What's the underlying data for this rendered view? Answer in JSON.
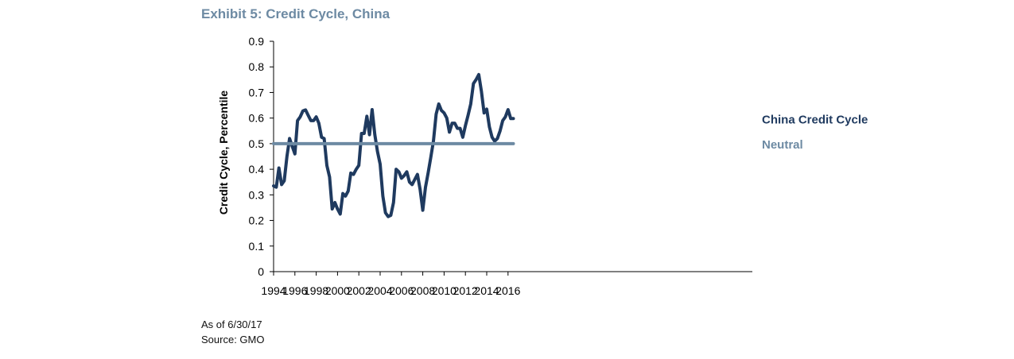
{
  "title": "Exhibit 5: Credit Cycle, China",
  "notes": {
    "as_of": "As of 6/30/17",
    "source": "Source: GMO"
  },
  "colors": {
    "series": "#1f3a5f",
    "neutral": "#6d8aa3",
    "title": "#6d8aa3",
    "axis": "#000000"
  },
  "chart_data": {
    "type": "line",
    "title": "Exhibit 5: Credit Cycle, China",
    "xlabel": "",
    "ylabel": "Credit Cycle, Percentile",
    "xlim": [
      1994,
      2016.5
    ],
    "ylim": [
      0,
      0.9
    ],
    "x_ticks": [
      "1994",
      "1996",
      "1998",
      "2000",
      "2002",
      "2004",
      "2006",
      "2008",
      "2010",
      "2012",
      "2014",
      "2016"
    ],
    "y_ticks": [
      "0",
      "0.1",
      "0.2",
      "0.3",
      "0.4",
      "0.5",
      "0.6",
      "0.7",
      "0.8",
      "0.9"
    ],
    "grid": false,
    "legend": "inline-right",
    "series": [
      {
        "name": "China Credit Cycle",
        "x": [
          1994.0,
          1994.25,
          1994.5,
          1994.75,
          1995.0,
          1995.25,
          1995.5,
          1995.75,
          1996.0,
          1996.25,
          1996.5,
          1996.75,
          1997.0,
          1997.25,
          1997.5,
          1997.75,
          1998.0,
          1998.25,
          1998.5,
          1998.75,
          1999.0,
          1999.25,
          1999.5,
          1999.75,
          2000.0,
          2000.25,
          2000.5,
          2000.75,
          2001.0,
          2001.25,
          2001.5,
          2001.75,
          2002.0,
          2002.25,
          2002.5,
          2002.75,
          2003.0,
          2003.25,
          2003.5,
          2003.75,
          2004.0,
          2004.25,
          2004.5,
          2004.75,
          2005.0,
          2005.25,
          2005.5,
          2005.75,
          2006.0,
          2006.25,
          2006.5,
          2006.75,
          2007.0,
          2007.25,
          2007.5,
          2007.75,
          2008.0,
          2008.25,
          2008.5,
          2008.75,
          2009.0,
          2009.25,
          2009.5,
          2009.75,
          2010.0,
          2010.25,
          2010.5,
          2010.75,
          2011.0,
          2011.25,
          2011.5,
          2011.75,
          2012.0,
          2012.25,
          2012.5,
          2012.75,
          2013.0,
          2013.25,
          2013.5,
          2013.75,
          2014.0,
          2014.25,
          2014.5,
          2014.75,
          2015.0,
          2015.25,
          2015.5,
          2015.75,
          2016.0,
          2016.25,
          2016.5
        ],
        "values": [
          0.335,
          0.33,
          0.405,
          0.34,
          0.355,
          0.45,
          0.52,
          0.49,
          0.46,
          0.59,
          0.605,
          0.628,
          0.632,
          0.61,
          0.59,
          0.59,
          0.605,
          0.58,
          0.525,
          0.52,
          0.415,
          0.37,
          0.245,
          0.27,
          0.245,
          0.225,
          0.305,
          0.295,
          0.315,
          0.385,
          0.38,
          0.4,
          0.415,
          0.54,
          0.54,
          0.607,
          0.535,
          0.633,
          0.535,
          0.47,
          0.42,
          0.295,
          0.23,
          0.215,
          0.22,
          0.27,
          0.4,
          0.39,
          0.365,
          0.375,
          0.39,
          0.35,
          0.34,
          0.36,
          0.38,
          0.32,
          0.24,
          0.33,
          0.385,
          0.445,
          0.51,
          0.615,
          0.655,
          0.63,
          0.62,
          0.6,
          0.545,
          0.58,
          0.58,
          0.56,
          0.56,
          0.525,
          0.57,
          0.61,
          0.655,
          0.735,
          0.75,
          0.77,
          0.705,
          0.62,
          0.635,
          0.565,
          0.525,
          0.51,
          0.52,
          0.55,
          0.59,
          0.605,
          0.633,
          0.598,
          0.598
        ]
      },
      {
        "name": "Neutral",
        "x": [
          1994,
          2016.5
        ],
        "values": [
          0.5,
          0.5
        ]
      }
    ]
  }
}
